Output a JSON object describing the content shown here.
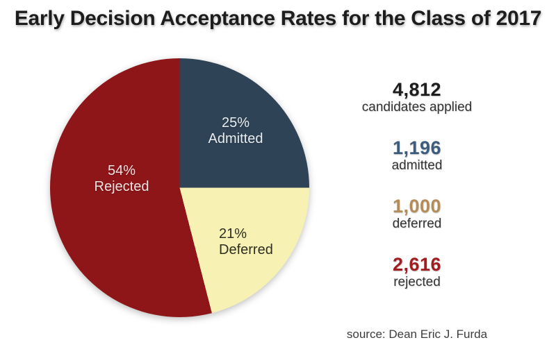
{
  "title": "Early Decision Acceptance Rates for the Class of 2017",
  "chart_data": {
    "type": "pie",
    "title": "Early Decision Acceptance Rates for the Class of 2017",
    "start_angle_deg": 0,
    "direction": "clockwise",
    "legend_position": "none",
    "total_label": "candidates applied",
    "total": 4812,
    "slices": [
      {
        "label": "Admitted",
        "percent": 25,
        "percent_label": "25%",
        "value": 1196,
        "color": "#2e4356",
        "text_color": "#e9edf0"
      },
      {
        "label": "Deferred",
        "percent": 21,
        "percent_label": "21%",
        "value": 1000,
        "color": "#f7f2b4",
        "text_color": "#2d2d22"
      },
      {
        "label": "Rejected",
        "percent": 54,
        "percent_label": "54%",
        "value": 2616,
        "color": "#8e1619",
        "text_color": "#efe2e2"
      }
    ]
  },
  "stats": [
    {
      "value": "4,812",
      "label": "candidates applied",
      "color": "#1d1d1d"
    },
    {
      "value": "1,196",
      "label": "admitted",
      "color": "#3e5c7d"
    },
    {
      "value": "1,000",
      "label": "deferred",
      "color": "#b38c58"
    },
    {
      "value": "2,616",
      "label": "rejected",
      "color": "#a01d22"
    }
  ],
  "source": "source: Dean Eric J. Furda",
  "colors": {
    "title": "#1d1d1d",
    "stat_label": "#333333",
    "source_text": "#3c3c3c",
    "background": "#ffffff"
  }
}
